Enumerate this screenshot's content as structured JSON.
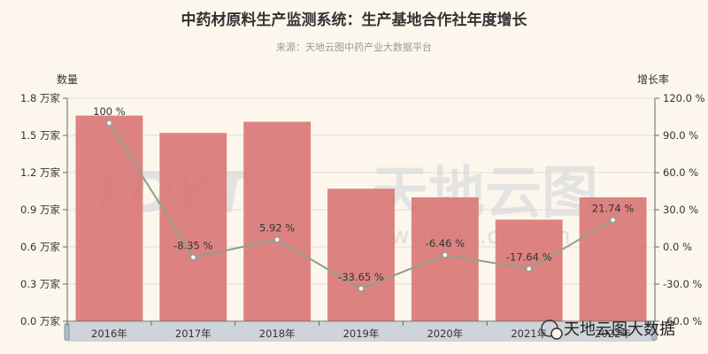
{
  "header": {
    "title": "中药材原料生产监测系统：生产基地合作社年度增长",
    "subtitle": "来源：天地云图中药产业大数据平台"
  },
  "chart_data": {
    "type": "bar",
    "categories": [
      "2016年",
      "2017年",
      "2018年",
      "2019年",
      "2020年",
      "2021年",
      "2022年"
    ],
    "series": [
      {
        "type": "bar",
        "axis": "left",
        "values": [
          1.66,
          1.52,
          1.61,
          1.07,
          1.0,
          0.82,
          1.0
        ]
      },
      {
        "type": "line",
        "axis": "right",
        "values": [
          100,
          -8.35,
          5.92,
          -33.65,
          -6.46,
          -17.64,
          21.74
        ],
        "labels": [
          "100 %",
          "-8.35 %",
          "5.92 %",
          "-33.65 %",
          "-6.46 %",
          "-17.64 %",
          "21.74 %"
        ]
      }
    ],
    "y_left": {
      "name": "数量",
      "range": [
        0,
        1.8
      ],
      "ticks": [
        "0.0 万家",
        "0.3 万家",
        "0.6 万家",
        "0.9 万家",
        "1.2 万家",
        "1.5 万家",
        "1.8 万家"
      ]
    },
    "y_right": {
      "name": "增长率",
      "range": [
        -60,
        120
      ],
      "ticks": [
        "-60.0 %",
        "-30.0 %",
        "0.0 %",
        "30.0 %",
        "60.0 %",
        "90.0 %",
        "120.0 %"
      ]
    },
    "grid": true,
    "colors": {
      "bar": "#d97a78",
      "line": "#8fa08f",
      "point": "#ffffff",
      "grid": "#e3ddd2",
      "axis": "#666666",
      "zoom_bar": "#c6ced6"
    }
  },
  "watermark": {
    "logo": "TDYT",
    "big_text": "天地云图",
    "url": "www.tdyt.com.cn",
    "brand": "天地云图大数据"
  }
}
